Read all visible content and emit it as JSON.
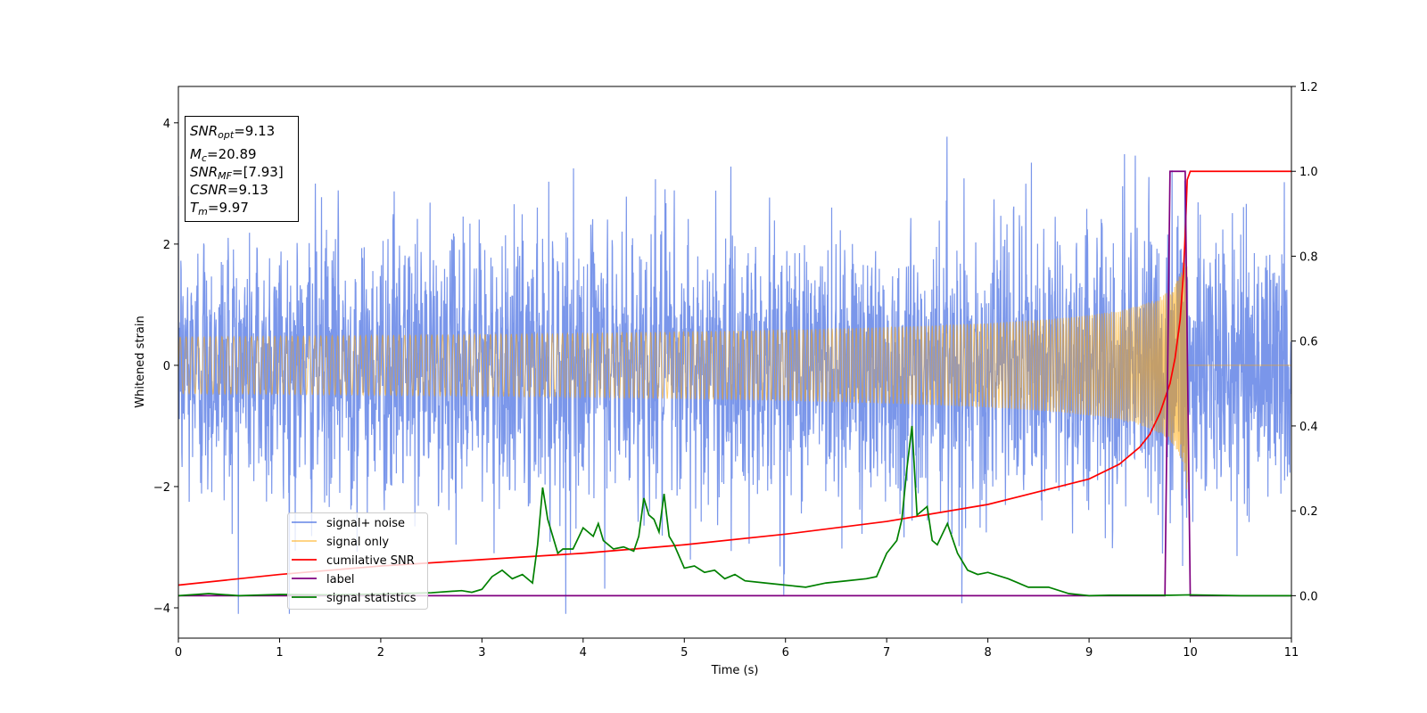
{
  "chart_data": {
    "type": "line",
    "xlabel": "Time (s)",
    "ylabel": "Whitened strain",
    "xlim": [
      0,
      11
    ],
    "ylim": [
      -4.5,
      4.6
    ],
    "y2lim": [
      -0.1,
      1.2
    ],
    "xticks": [
      0,
      1,
      2,
      3,
      4,
      5,
      6,
      7,
      8,
      9,
      10,
      11
    ],
    "yticks": [
      -4,
      -2,
      0,
      2,
      4
    ],
    "y2ticks": [
      0.0,
      0.2,
      0.4,
      0.6,
      0.8,
      1.0,
      1.2
    ],
    "grid": false,
    "legend_position": "lower-left",
    "info_box": {
      "snr_opt": {
        "sym": "SNR",
        "sub": "opt",
        "value": "=9.13"
      },
      "mc": {
        "sym": "M",
        "sub": "c",
        "value": "=20.89"
      },
      "snr_mf": {
        "sym": "SNR",
        "sub": "MF",
        "value": "=[7.93]"
      },
      "csnr": {
        "sym": "CSNR",
        "sub": "",
        "value": "=9.13"
      },
      "tm": {
        "sym": "T",
        "sub": "m",
        "value": "=9.97"
      }
    },
    "series": [
      {
        "name": "signal+ noise",
        "axis": "left",
        "color": "#4169e1",
        "opacity": 0.7,
        "kind": "noise",
        "noise_std": 1.0,
        "envelope_peaks": [
          4.1,
          -4.1
        ],
        "duration": 11
      },
      {
        "name": "signal only",
        "axis": "left",
        "color": "#ffa500",
        "opacity": 0.55,
        "kind": "chirp",
        "merger_time": 9.97,
        "peak_amplitude": 2.2
      },
      {
        "name": "cumilative SNR",
        "axis": "right",
        "color": "#ff0000",
        "x": [
          0,
          1,
          2,
          3,
          4,
          5,
          6,
          7,
          8,
          9,
          9.3,
          9.5,
          9.6,
          9.7,
          9.8,
          9.85,
          9.9,
          9.93,
          9.95,
          9.97,
          10.0,
          11
        ],
        "values": [
          0.025,
          0.05,
          0.07,
          0.085,
          0.1,
          0.12,
          0.145,
          0.175,
          0.215,
          0.275,
          0.31,
          0.35,
          0.38,
          0.43,
          0.5,
          0.56,
          0.65,
          0.75,
          0.85,
          0.98,
          1.0,
          1.0
        ]
      },
      {
        "name": "label",
        "axis": "right",
        "color": "#800080",
        "x": [
          0,
          9.75,
          9.8,
          9.95,
          10.0,
          11
        ],
        "values": [
          0,
          0,
          1.0,
          1.0,
          0,
          0
        ]
      },
      {
        "name": "signal statistics",
        "axis": "right",
        "color": "#008000",
        "x": [
          0,
          0.3,
          0.6,
          1.0,
          1.5,
          2.0,
          2.5,
          2.8,
          2.9,
          3.0,
          3.1,
          3.2,
          3.3,
          3.4,
          3.5,
          3.55,
          3.6,
          3.65,
          3.75,
          3.8,
          3.9,
          4.0,
          4.1,
          4.15,
          4.2,
          4.3,
          4.4,
          4.5,
          4.55,
          4.6,
          4.65,
          4.7,
          4.75,
          4.8,
          4.85,
          4.9,
          5.0,
          5.1,
          5.2,
          5.3,
          5.4,
          5.5,
          5.6,
          5.8,
          6.0,
          6.2,
          6.4,
          6.6,
          6.8,
          6.9,
          7.0,
          7.1,
          7.15,
          7.2,
          7.25,
          7.3,
          7.35,
          7.4,
          7.45,
          7.5,
          7.6,
          7.7,
          7.8,
          7.9,
          8.0,
          8.2,
          8.4,
          8.6,
          8.8,
          9.0,
          9.2,
          9.5,
          9.8,
          10.0,
          10.5,
          11
        ],
        "values": [
          0.0,
          0.005,
          0.0,
          0.003,
          0.002,
          0.004,
          0.007,
          0.012,
          0.008,
          0.015,
          0.045,
          0.06,
          0.04,
          0.05,
          0.03,
          0.12,
          0.255,
          0.18,
          0.1,
          0.11,
          0.11,
          0.16,
          0.14,
          0.17,
          0.13,
          0.11,
          0.115,
          0.105,
          0.14,
          0.23,
          0.19,
          0.18,
          0.15,
          0.24,
          0.14,
          0.12,
          0.065,
          0.07,
          0.055,
          0.06,
          0.04,
          0.05,
          0.035,
          0.03,
          0.025,
          0.02,
          0.03,
          0.035,
          0.04,
          0.045,
          0.1,
          0.13,
          0.18,
          0.3,
          0.4,
          0.19,
          0.2,
          0.21,
          0.13,
          0.12,
          0.17,
          0.1,
          0.06,
          0.05,
          0.055,
          0.04,
          0.02,
          0.02,
          0.005,
          0.0,
          0.001,
          0.001,
          0.001,
          0.002,
          0.0,
          0.0
        ]
      }
    ]
  }
}
